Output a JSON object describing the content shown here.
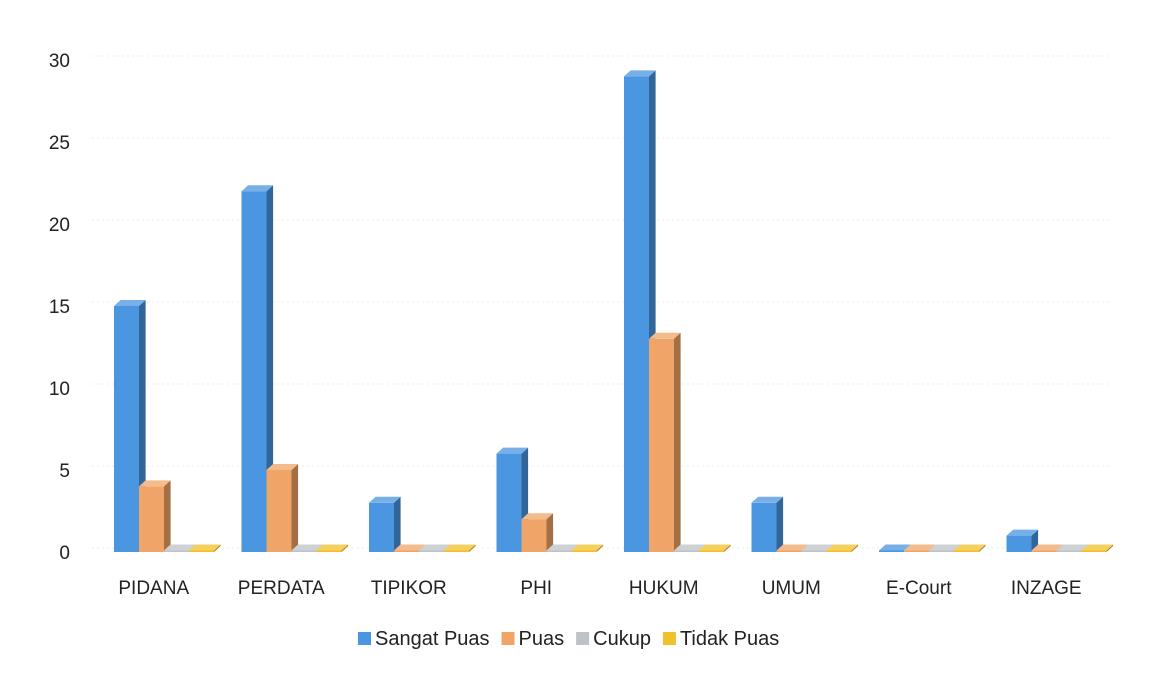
{
  "chart_data": {
    "type": "bar",
    "title": "",
    "xlabel": "",
    "ylabel": "",
    "ylim": [
      0,
      30
    ],
    "yticks": [
      0,
      5,
      10,
      15,
      20,
      25,
      30
    ],
    "grid": true,
    "legend_position": "bottom",
    "style": "3d-column",
    "categories": [
      "PIDANA",
      "PERDATA",
      "TIPIKOR",
      "PHI",
      "HUKUM",
      "UMUM",
      "E-Court",
      "INZAGE"
    ],
    "series": [
      {
        "name": "Sangat Puas",
        "color": "#4a96e0",
        "values": [
          15,
          22,
          3,
          6,
          29,
          3,
          0,
          1
        ]
      },
      {
        "name": "Puas",
        "color": "#f0a467",
        "values": [
          4,
          5,
          0,
          2,
          13,
          0,
          0,
          0
        ]
      },
      {
        "name": "Cukup",
        "color": "#bfc3c7",
        "values": [
          0,
          0,
          0,
          0,
          0,
          0,
          0,
          0
        ]
      },
      {
        "name": "Tidak Puas",
        "color": "#f2c028",
        "values": [
          0,
          0,
          0,
          0,
          0,
          0,
          0,
          0
        ]
      }
    ]
  }
}
